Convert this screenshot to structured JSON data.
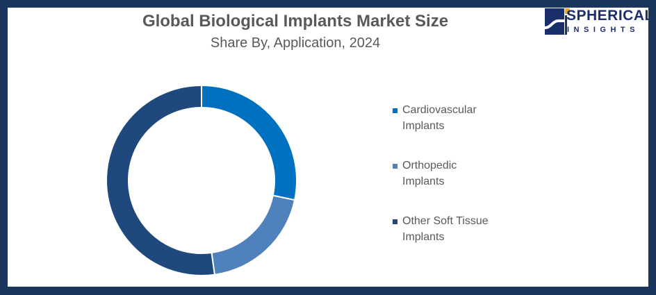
{
  "chart_data": {
    "type": "pie",
    "variant": "donut",
    "title": "Global Biological Implants Market Size",
    "subtitle": "Share By, Application, 2024",
    "categories": [
      "Cardiovascular Implants",
      "Orthopedic Implants",
      "Other Soft Tissue Implants"
    ],
    "values": [
      28.3,
      19.5,
      52.2
    ],
    "unit": "%",
    "colors": [
      "#0070c0",
      "#4f81bd",
      "#1f497d"
    ],
    "legend_position": "right"
  },
  "legend": [
    {
      "line1": "Cardiovascular",
      "line2": "Implants"
    },
    {
      "line1": "Orthopedic",
      "line2": "Implants"
    },
    {
      "line1": "Other Soft Tissue",
      "line2": "Implants"
    }
  ],
  "logo": {
    "line1": "SPHERICAL",
    "line2": "INSIGHTS"
  },
  "colors": {
    "frame": "#1b365d",
    "text": "#595959"
  }
}
